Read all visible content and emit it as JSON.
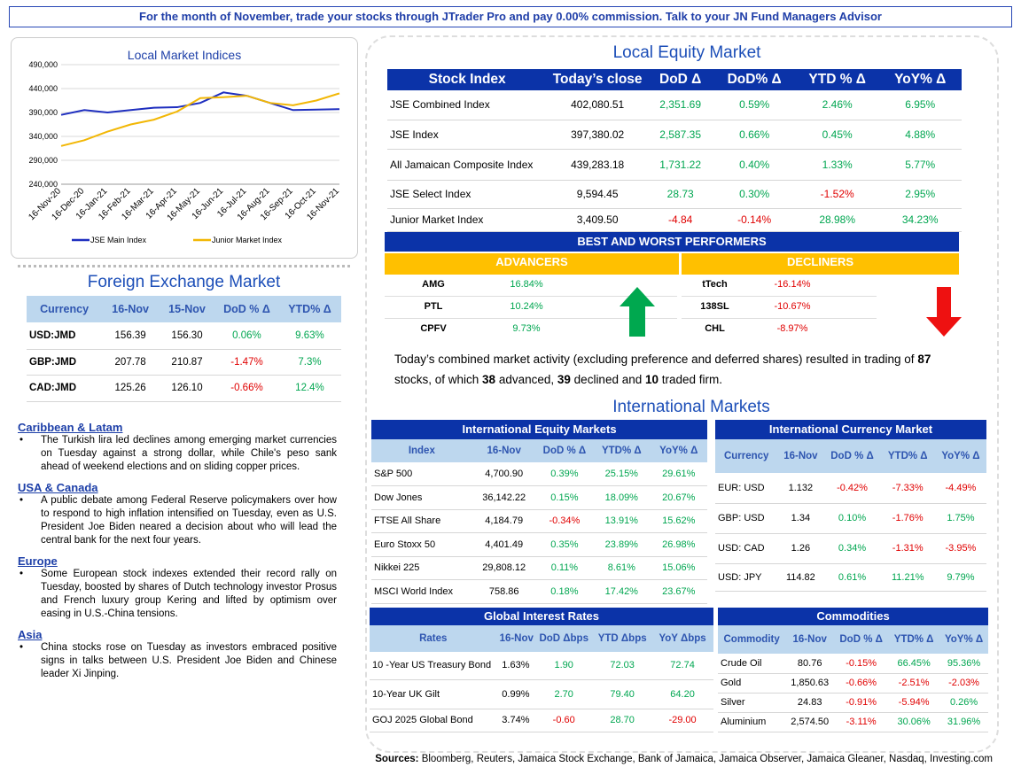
{
  "banner": "For the month of November, trade your stocks through JTrader Pro and pay 0.00% commission. Talk to your JN Fund Managers Advisor",
  "chart_data": {
    "type": "line",
    "title": "Local Market Indices",
    "categories": [
      "16-Nov-20",
      "16-Dec-20",
      "16-Jan-21",
      "16-Feb-21",
      "16-Mar-21",
      "16-Apr-21",
      "16-May-21",
      "16-Jun-21",
      "16-Jul-21",
      "16-Aug-21",
      "16-Sep-21",
      "16-Oct-21",
      "16-Nov-21"
    ],
    "series": [
      {
        "name": "JSE Main Index",
        "color": "#1f2fbf",
        "values": [
          385000,
          395000,
          390000,
          395000,
          400000,
          401000,
          410000,
          432000,
          425000,
          410000,
          395000,
          396000,
          397000
        ]
      },
      {
        "name": "Junior Market Index",
        "color": "#f2b705",
        "values": [
          320000,
          332000,
          350000,
          365000,
          375000,
          392000,
          420000,
          422000,
          425000,
          410000,
          405000,
          415000,
          430000
        ]
      }
    ],
    "ylim": [
      240000,
      490000
    ],
    "yticks": [
      {
        "value": 240000,
        "label": "240,000"
      },
      {
        "value": 290000,
        "label": "290,000"
      },
      {
        "value": 340000,
        "label": "340,000"
      },
      {
        "value": 390000,
        "label": "390,000"
      },
      {
        "value": 440000,
        "label": "440,000"
      },
      {
        "value": 490000,
        "label": "490,000"
      }
    ],
    "grid": true
  },
  "fx": {
    "title": "Foreign Exchange Market",
    "header": [
      "Currency",
      "16-Nov",
      "15-Nov",
      "DoD % Δ",
      "YTD% Δ"
    ],
    "rows": [
      [
        "USD:JMD",
        "156.39",
        "156.30",
        "0.06%",
        "9.63%"
      ],
      [
        "GBP:JMD",
        "207.78",
        "210.87",
        "-1.47%",
        "7.3%"
      ],
      [
        "CAD:JMD",
        "125.26",
        "126.10",
        "-0.66%",
        "12.4%"
      ]
    ]
  },
  "news": [
    {
      "heading": "Caribbean & Latam",
      "text": "The Turkish lira led declines among emerging market currencies on Tuesday against a strong dollar, while Chile's peso sank ahead of weekend elections and on sliding copper prices."
    },
    {
      "heading": "USA & Canada",
      "text": "A public debate among Federal Reserve policymakers over how to respond to high inflation intensified on Tuesday, even as U.S. President Joe Biden neared a decision about who will lead the central bank for the next four years."
    },
    {
      "heading": "Europe",
      "text": "Some European stock indexes extended their record rally on Tuesday, boosted by shares of Dutch technology investor Prosus and French luxury group Kering and lifted by optimism over easing in U.S.-China tensions."
    },
    {
      "heading": "Asia",
      "text": "China stocks rose on Tuesday as investors embraced positive signs in talks between U.S. President Joe Biden and Chinese leader Xi Jinping."
    }
  ],
  "local_equity": {
    "title": "Local Equity Market",
    "header": [
      "Stock Index",
      "Today’s close",
      "DoD  Δ",
      "DoD% Δ",
      "YTD % Δ",
      "YoY% Δ"
    ],
    "rows": [
      [
        "JSE Combined Index",
        "402,080.51",
        "2,351.69",
        "0.59%",
        "2.46%",
        "6.95%"
      ],
      [
        "JSE Index",
        "397,380.02",
        "2,587.35",
        "0.66%",
        "0.45%",
        "4.88%"
      ],
      [
        "All Jamaican Composite Index",
        "439,283.18",
        "1,731.22",
        "0.40%",
        "1.33%",
        "5.77%"
      ],
      [
        "JSE Select Index",
        "9,594.45",
        "28.73",
        "0.30%",
        "-1.52%",
        "2.95%"
      ],
      [
        "Junior Market Index",
        "3,409.50",
        "-4.84",
        "-0.14%",
        "28.98%",
        "34.23%"
      ]
    ]
  },
  "performers": {
    "title": "BEST AND WORST PERFORMERS",
    "advancers_title": "ADVANCERS",
    "decliners_title": "DECLINERS",
    "advancers": [
      [
        "AMG",
        "16.84%"
      ],
      [
        "PTL",
        "10.24%"
      ],
      [
        "CPFV",
        "9.73%"
      ]
    ],
    "decliners": [
      [
        "tTech",
        "-16.14%"
      ],
      [
        "138SL",
        "-10.67%"
      ],
      [
        "CHL",
        "-8.97%"
      ]
    ]
  },
  "summary": [
    "Today’s combined market activity (excluding preference and deferred shares) resulted in trading of ",
    "87",
    " stocks, of which ",
    "38",
    " advanced, ",
    "39",
    " declined and ",
    "10",
    " traded firm."
  ],
  "international_title": "International Markets",
  "int_equity": {
    "title": "International Equity Markets",
    "header": [
      "Index",
      "16-Nov",
      "DoD % Δ",
      "YTD% Δ",
      "YoY% Δ"
    ],
    "rows": [
      [
        "S&P 500",
        "4,700.90",
        "0.39%",
        "25.15%",
        "29.61%"
      ],
      [
        "Dow Jones",
        "36,142.22",
        "0.15%",
        "18.09%",
        "20.67%"
      ],
      [
        "FTSE All Share",
        "4,184.79",
        "-0.34%",
        "13.91%",
        "15.62%"
      ],
      [
        "Euro Stoxx 50",
        "4,401.49",
        "0.35%",
        "23.89%",
        "26.98%"
      ],
      [
        "Nikkei 225",
        "29,808.12",
        "0.11%",
        "8.61%",
        "15.06%"
      ],
      [
        "MSCI World Index",
        "758.86",
        "0.18%",
        "17.42%",
        "23.67%"
      ]
    ]
  },
  "int_currency": {
    "title": "International Currency Market",
    "header": [
      "Currency",
      "16-Nov",
      "DoD % Δ",
      "YTD% Δ",
      "YoY% Δ"
    ],
    "rows": [
      [
        "EUR: USD",
        "1.132",
        "-0.42%",
        "-7.33%",
        "-4.49%"
      ],
      [
        "GBP: USD",
        "1.34",
        "0.10%",
        "-1.76%",
        "1.75%"
      ],
      [
        "USD: CAD",
        "1.26",
        "0.34%",
        "-1.31%",
        "-3.95%"
      ],
      [
        "USD: JPY",
        "114.82",
        "0.61%",
        "11.21%",
        "9.79%"
      ]
    ]
  },
  "interest_rates": {
    "title": "Global Interest Rates",
    "header": [
      "Rates",
      "16-Nov",
      "DoD Δbps",
      "YTD Δbps",
      "YoY Δbps"
    ],
    "rows": [
      [
        "10 -Year US Treasury Bond",
        "1.63%",
        "1.90",
        "72.03",
        "72.74"
      ],
      [
        "10-Year UK Gilt",
        "0.99%",
        "2.70",
        "79.40",
        "64.20"
      ],
      [
        "GOJ 2025 Global Bond",
        "3.74%",
        "-0.60",
        "28.70",
        "-29.00"
      ]
    ]
  },
  "commodities": {
    "title": "Commodities",
    "header": [
      "Commodity",
      "16-Nov",
      "DoD % Δ",
      "YTD% Δ",
      "YoY% Δ"
    ],
    "rows": [
      [
        "Crude Oil",
        "80.76",
        "-0.15%",
        "66.45%",
        "95.36%"
      ],
      [
        "Gold",
        "1,850.63",
        "-0.66%",
        "-2.51%",
        "-2.03%"
      ],
      [
        "Silver",
        "24.83",
        "-0.91%",
        "-5.94%",
        "0.26%"
      ],
      [
        "Aluminium",
        "2,574.50",
        "-3.11%",
        "30.06%",
        "31.96%"
      ]
    ]
  },
  "sources": {
    "label": "Sources:",
    "text": "Bloomberg, Reuters, Jamaica Stock Exchange, Bank of Jamaica, Jamaica Observer, Jamaica Gleaner, Nasdaq, Investing.com"
  }
}
